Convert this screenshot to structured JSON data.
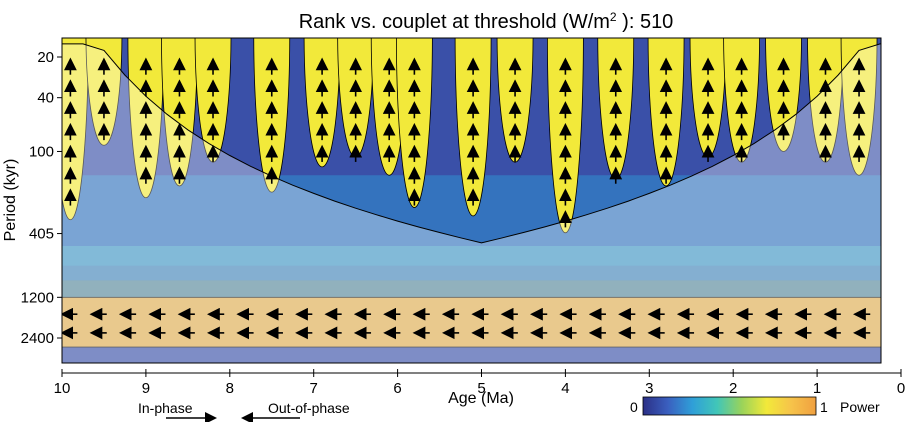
{
  "chart_data": {
    "type": "heatmap",
    "title": "Rank vs. couplet at threshold (W/m",
    "title_sup": "2",
    "title_tail": " ): 510",
    "xlabel": "Age (Ma)",
    "ylabel": "Period (kyr)",
    "xlim": [
      10,
      0
    ],
    "x_ticks": [
      "10",
      "9",
      "8",
      "7",
      "6",
      "5",
      "4",
      "3",
      "2",
      "1",
      "0"
    ],
    "y_scale": "log2",
    "ylim": [
      16,
      3200
    ],
    "y_ticks": [
      "20",
      "40",
      "100",
      "405",
      "1200",
      "2400"
    ],
    "y_tick_values": [
      20,
      40,
      100,
      405,
      1200,
      2400
    ],
    "colorbar": {
      "min_label": "0",
      "max_label": "1",
      "label": "Power",
      "colors": [
        "#2b2f86",
        "#3a5fbf",
        "#2f9fd8",
        "#41c6b8",
        "#9ad35a",
        "#f2e93a",
        "#f6c34a",
        "#f0a040"
      ]
    },
    "phase_legend": {
      "in_phase": "In-phase",
      "out_of_phase": "Out-of-phase"
    },
    "high_power_bands": [
      {
        "center_age": 9.9,
        "period_top": 20,
        "period_bottom": 320
      },
      {
        "center_age": 9.5,
        "period_top": 20,
        "period_bottom": 90
      },
      {
        "center_age": 9.0,
        "period_top": 20,
        "period_bottom": 220
      },
      {
        "center_age": 8.6,
        "period_top": 20,
        "period_bottom": 180
      },
      {
        "center_age": 8.2,
        "period_top": 20,
        "period_bottom": 120
      },
      {
        "center_age": 7.5,
        "period_top": 20,
        "period_bottom": 200
      },
      {
        "center_age": 6.9,
        "period_top": 20,
        "period_bottom": 130
      },
      {
        "center_age": 6.5,
        "period_top": 20,
        "period_bottom": 110
      },
      {
        "center_age": 6.1,
        "period_top": 20,
        "period_bottom": 150
      },
      {
        "center_age": 5.8,
        "period_top": 20,
        "period_bottom": 260
      },
      {
        "center_age": 5.1,
        "period_top": 20,
        "period_bottom": 300
      },
      {
        "center_age": 4.6,
        "period_top": 20,
        "period_bottom": 120
      },
      {
        "center_age": 4.0,
        "period_top": 20,
        "period_bottom": 400
      },
      {
        "center_age": 3.4,
        "period_top": 20,
        "period_bottom": 160
      },
      {
        "center_age": 2.8,
        "period_top": 20,
        "period_bottom": 180
      },
      {
        "center_age": 2.3,
        "period_top": 20,
        "period_bottom": 110
      },
      {
        "center_age": 1.9,
        "period_top": 20,
        "period_bottom": 120
      },
      {
        "center_age": 1.4,
        "period_top": 20,
        "period_bottom": 100
      },
      {
        "center_age": 0.9,
        "period_top": 20,
        "period_bottom": 120
      },
      {
        "center_age": 0.5,
        "period_top": 20,
        "period_bottom": 150
      }
    ],
    "long_period_band": {
      "period_top": 1200,
      "period_bottom": 2800,
      "age_start": 10,
      "age_end": 0.2
    }
  }
}
